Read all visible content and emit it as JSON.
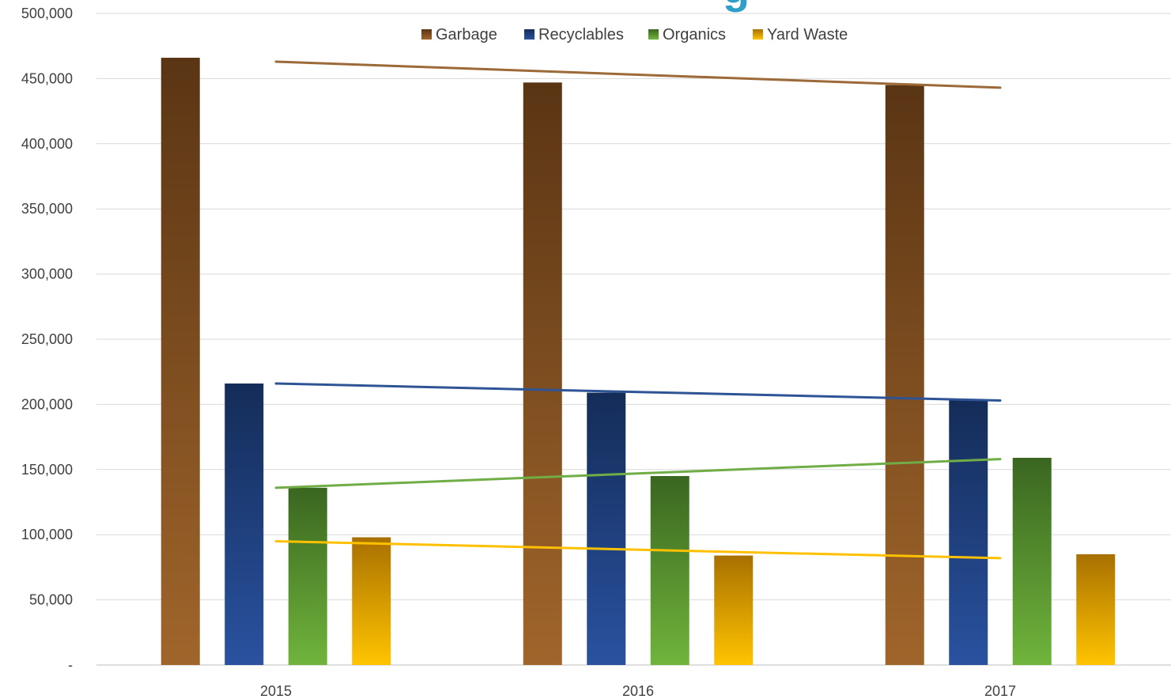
{
  "chart_data": {
    "type": "bar",
    "title_fragment": "g",
    "categories": [
      "2015",
      "2016",
      "2017"
    ],
    "ylim": [
      0,
      500000
    ],
    "yticks": [
      0,
      50000,
      100000,
      150000,
      200000,
      250000,
      300000,
      350000,
      400000,
      450000,
      500000
    ],
    "ytick_labels": [
      "-",
      "50,000",
      "100,000",
      "150,000",
      "200,000",
      "250,000",
      "300,000",
      "350,000",
      "400,000",
      "450,000",
      "500,000"
    ],
    "grid": true,
    "legend_position": "top-center",
    "series": [
      {
        "name": "Garbage",
        "values": [
          466000,
          447000,
          445000
        ],
        "color_top": "#5a3514",
        "color_bottom": "#a0652b",
        "trend_color": "#9c6a38",
        "trend": [
          463000,
          443000
        ]
      },
      {
        "name": "Recyclables",
        "values": [
          216000,
          209000,
          203000
        ],
        "color_top": "#142c58",
        "color_bottom": "#2a52a0",
        "trend_color": "#2f5496",
        "trend": [
          216000,
          203000
        ]
      },
      {
        "name": "Organics",
        "values": [
          136000,
          145000,
          159000
        ],
        "color_top": "#3a6620",
        "color_bottom": "#70b43c",
        "trend_color": "#70ad47",
        "trend": [
          136000,
          158000
        ]
      },
      {
        "name": "Yard Waste",
        "values": [
          98000,
          84000,
          85000
        ],
        "color_top": "#a87000",
        "color_bottom": "#ffc400",
        "trend_color": "#ffc000",
        "trend": [
          95000,
          82000
        ]
      }
    ]
  }
}
